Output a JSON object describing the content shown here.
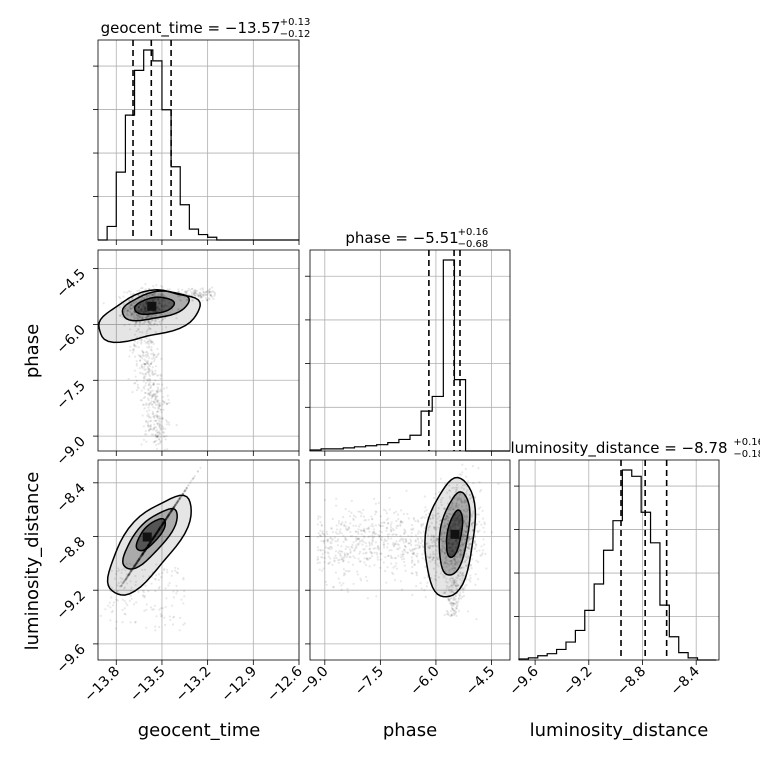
{
  "chart_data": {
    "type": "corner",
    "parameters": [
      "geocent_time",
      "phase",
      "luminosity_distance"
    ],
    "axis_labels": {
      "x": [
        "geocent_time",
        "phase",
        "luminosity_distance"
      ],
      "y": [
        "phase",
        "luminosity_distance"
      ]
    },
    "ranges": {
      "geocent_time": [
        -13.92,
        -12.6
      ],
      "phase": [
        -9.4,
        -4.0
      ],
      "luminosity_distance": [
        -9.72,
        -8.23
      ]
    },
    "ticks": {
      "geocent_time": [
        "−13.8",
        "−13.5",
        "−13.2",
        "−12.9",
        "−12.6"
      ],
      "phase": [
        "−9.0",
        "−7.5",
        "−6.0",
        "−4.5"
      ],
      "luminosity_distance": [
        "−9.6",
        "−9.2",
        "−8.8",
        "−8.4"
      ]
    },
    "titles": [
      {
        "param": "geocent_time",
        "text": "geocent_time = −13.57",
        "plus": "+0.13",
        "minus": "−0.12",
        "median": -13.57,
        "q_low": -13.69,
        "q_high": -13.44
      },
      {
        "param": "phase",
        "text": "phase = −5.51",
        "plus": "+0.16",
        "minus": "−0.68",
        "median": -5.51,
        "q_low": -6.19,
        "q_high": -5.35
      },
      {
        "param": "luminosity_distance",
        "text": "luminosity_distance = −8.78",
        "plus": "+0.16",
        "minus": "−0.18",
        "median": -8.78,
        "q_low": -8.96,
        "q_high": -8.62
      }
    ],
    "histograms": {
      "geocent_time": {
        "bin_edges": [
          -13.92,
          -13.86,
          -13.8,
          -13.74,
          -13.68,
          -13.62,
          -13.56,
          -13.5,
          -13.44,
          -13.38,
          -13.32,
          -13.26,
          -13.2,
          -13.14,
          -13.08,
          -13.02,
          -12.96,
          -12.9,
          -12.84,
          -12.78,
          -12.72,
          -12.66,
          -12.6
        ],
        "counts": [
          0,
          10,
          50,
          92,
          125,
          140,
          132,
          96,
          54,
          26,
          8,
          4,
          2,
          0,
          0,
          0,
          0,
          0,
          0,
          0,
          0,
          0
        ]
      },
      "phase": {
        "bin_edges": [
          -9.4,
          -9.1,
          -8.8,
          -8.5,
          -8.2,
          -7.9,
          -7.6,
          -7.3,
          -7.0,
          -6.7,
          -6.4,
          -6.1,
          -5.8,
          -5.5,
          -5.2,
          -4.9,
          -4.6,
          -4.3,
          -4.0
        ],
        "counts": [
          1,
          2,
          2,
          3,
          4,
          5,
          6,
          8,
          11,
          15,
          38,
          52,
          182,
          68,
          0,
          0,
          0,
          0
        ]
      },
      "luminosity_distance": {
        "bin_edges": [
          -9.72,
          -9.65,
          -9.58,
          -9.51,
          -9.44,
          -9.37,
          -9.3,
          -9.23,
          -9.16,
          -9.09,
          -9.02,
          -8.95,
          -8.88,
          -8.81,
          -8.74,
          -8.67,
          -8.6,
          -8.53,
          -8.46,
          -8.39,
          -8.32,
          -8.25
        ],
        "counts": [
          1,
          2,
          4,
          6,
          10,
          17,
          28,
          47,
          72,
          104,
          132,
          180,
          174,
          140,
          111,
          52,
          22,
          7,
          2,
          0,
          0
        ]
      }
    },
    "pair_plots": [
      {
        "x": "geocent_time",
        "y": "phase",
        "mode": {
          "x": -13.57,
          "y": -5.5
        }
      },
      {
        "x": "geocent_time",
        "y": "luminosity_distance",
        "mode": {
          "x": -13.6,
          "y": -8.8
        }
      },
      {
        "x": "phase",
        "y": "luminosity_distance",
        "mode": {
          "x": -5.5,
          "y": -8.78
        }
      }
    ],
    "grid": true,
    "colors": {
      "line": "#000000",
      "grid": "#b0b0b0",
      "points": "#000000"
    }
  }
}
